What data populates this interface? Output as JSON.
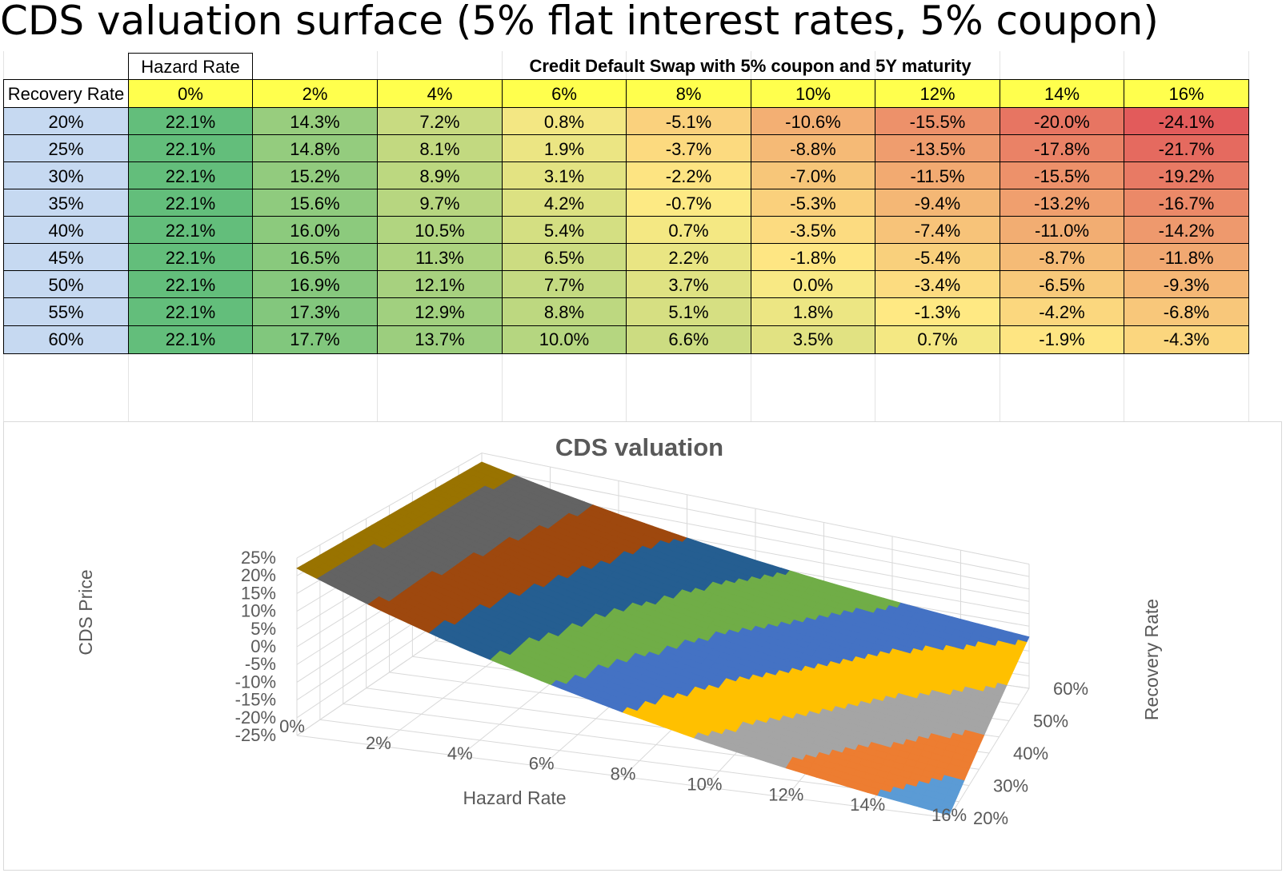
{
  "page_title": "CDS valuation surface (5% flat interest rates, 5% coupon)",
  "table": {
    "corner_label": "Recovery Rate",
    "hazard_header": "Hazard Rate",
    "banner": "Credit Default Swap with 5% coupon and 5Y maturity",
    "hazard_rates": [
      "0%",
      "2%",
      "4%",
      "6%",
      "8%",
      "10%",
      "12%",
      "14%",
      "16%"
    ],
    "recovery_rates": [
      "20%",
      "25%",
      "30%",
      "35%",
      "40%",
      "45%",
      "50%",
      "55%",
      "60%"
    ],
    "cells": [
      [
        "22.1%",
        "14.3%",
        "7.2%",
        "0.8%",
        "-5.1%",
        "-10.6%",
        "-15.5%",
        "-20.0%",
        "-24.1%"
      ],
      [
        "22.1%",
        "14.8%",
        "8.1%",
        "1.9%",
        "-3.7%",
        "-8.8%",
        "-13.5%",
        "-17.8%",
        "-21.7%"
      ],
      [
        "22.1%",
        "15.2%",
        "8.9%",
        "3.1%",
        "-2.2%",
        "-7.0%",
        "-11.5%",
        "-15.5%",
        "-19.2%"
      ],
      [
        "22.1%",
        "15.6%",
        "9.7%",
        "4.2%",
        "-0.7%",
        "-5.3%",
        "-9.4%",
        "-13.2%",
        "-16.7%"
      ],
      [
        "22.1%",
        "16.0%",
        "10.5%",
        "5.4%",
        "0.7%",
        "-3.5%",
        "-7.4%",
        "-11.0%",
        "-14.2%"
      ],
      [
        "22.1%",
        "16.5%",
        "11.3%",
        "6.5%",
        "2.2%",
        "-1.8%",
        "-5.4%",
        "-8.7%",
        "-11.8%"
      ],
      [
        "22.1%",
        "16.9%",
        "12.1%",
        "7.7%",
        "3.7%",
        "0.0%",
        "-3.4%",
        "-6.5%",
        "-9.3%"
      ],
      [
        "22.1%",
        "17.3%",
        "12.9%",
        "8.8%",
        "5.1%",
        "1.8%",
        "-1.3%",
        "-4.2%",
        "-6.8%"
      ],
      [
        "22.1%",
        "17.7%",
        "13.7%",
        "10.0%",
        "6.6%",
        "3.5%",
        "0.7%",
        "-1.9%",
        "-4.3%"
      ]
    ],
    "colors": {
      "header_yellow": "#ffff4d",
      "row_header_blue": "#c6d9f1",
      "scale_low": "#e25b5b",
      "scale_mid": "#ffeb84",
      "scale_high": "#63be7b"
    }
  },
  "chart_data": {
    "type": "surface",
    "title": "CDS valuation",
    "xlabel": "Hazard Rate",
    "ylabel": "Recovery Rate",
    "zlabel": "CDS Price",
    "x": [
      0,
      2,
      4,
      6,
      8,
      10,
      12,
      14,
      16
    ],
    "x_tick_labels": [
      "0%",
      "2%",
      "4%",
      "6%",
      "8%",
      "10%",
      "12%",
      "14%",
      "16%"
    ],
    "y": [
      20,
      25,
      30,
      35,
      40,
      45,
      50,
      55,
      60
    ],
    "y_tick_labels": [
      "20%",
      "30%",
      "40%",
      "50%",
      "60%"
    ],
    "z_tick_labels": [
      "25%",
      "20%",
      "15%",
      "10%",
      "5%",
      "0%",
      "-5%",
      "-10%",
      "-15%",
      "-20%",
      "-25%"
    ],
    "zlim": [
      -25,
      25
    ],
    "z": [
      [
        22.1,
        14.3,
        7.2,
        0.8,
        -5.1,
        -10.6,
        -15.5,
        -20.0,
        -24.1
      ],
      [
        22.1,
        14.8,
        8.1,
        1.9,
        -3.7,
        -8.8,
        -13.5,
        -17.8,
        -21.7
      ],
      [
        22.1,
        15.2,
        8.9,
        3.1,
        -2.2,
        -7.0,
        -11.5,
        -15.5,
        -19.2
      ],
      [
        22.1,
        15.6,
        9.7,
        4.2,
        -0.7,
        -5.3,
        -9.4,
        -13.2,
        -16.7
      ],
      [
        22.1,
        16.0,
        10.5,
        5.4,
        0.7,
        -3.5,
        -7.4,
        -11.0,
        -14.2
      ],
      [
        22.1,
        16.5,
        11.3,
        6.5,
        2.2,
        -1.8,
        -5.4,
        -8.7,
        -11.8
      ],
      [
        22.1,
        16.9,
        12.1,
        7.7,
        3.7,
        0.0,
        -3.4,
        -6.5,
        -9.3
      ],
      [
        22.1,
        17.3,
        12.9,
        8.8,
        5.1,
        1.8,
        -1.3,
        -4.2,
        -6.8
      ],
      [
        22.1,
        17.7,
        13.7,
        10.0,
        6.6,
        3.5,
        0.7,
        -1.9,
        -4.3
      ]
    ],
    "band_colors": [
      "#5b9bd5",
      "#ed7d31",
      "#a5a5a5",
      "#ffc000",
      "#4472c4",
      "#70ad47",
      "#255e91",
      "#9e480e",
      "#636363",
      "#997300"
    ],
    "grid": true
  }
}
